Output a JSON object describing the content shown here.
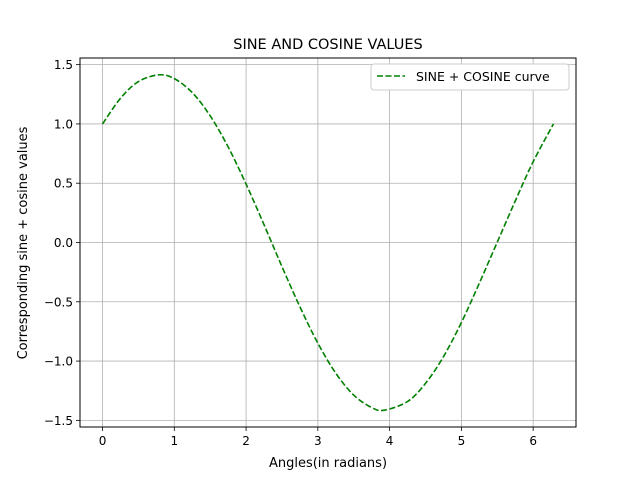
{
  "chart_data": {
    "type": "line",
    "title": "SINE AND COSINE VALUES",
    "xlabel": "Angles(in radians)",
    "ylabel": "Corresponding sine + cosine values",
    "xlim": [
      -0.314,
      6.597
    ],
    "ylim": [
      -1.556,
      1.556
    ],
    "x_ticks": [
      0,
      1,
      2,
      3,
      4,
      5,
      6
    ],
    "x_tick_labels": [
      "0",
      "1",
      "2",
      "3",
      "4",
      "5",
      "6"
    ],
    "y_ticks": [
      -1.5,
      -1.0,
      -0.5,
      0.0,
      0.5,
      1.0,
      1.5
    ],
    "y_tick_labels": [
      "−1.5",
      "−1.0",
      "−0.5",
      "0.0",
      "0.5",
      "1.0",
      "1.5"
    ],
    "grid": true,
    "legend_position": "upper right",
    "series": [
      {
        "name": "SINE + COSINE curve",
        "color": "#008000",
        "line_style": "dashed",
        "x": [
          0.0,
          0.25,
          0.5,
          0.785,
          1.0,
          1.25,
          1.5,
          1.75,
          2.0,
          2.25,
          2.5,
          2.75,
          3.0,
          3.25,
          3.5,
          3.75,
          3.927,
          4.25,
          4.5,
          4.75,
          5.0,
          5.25,
          5.5,
          5.75,
          6.0,
          6.283
        ],
        "y": [
          1.0,
          1.216,
          1.357,
          1.414,
          1.382,
          1.264,
          1.068,
          0.806,
          0.493,
          0.15,
          -0.203,
          -0.542,
          -0.849,
          -1.102,
          -1.287,
          -1.392,
          -1.414,
          -1.341,
          -1.188,
          -0.963,
          -0.675,
          -0.343,
          0.003,
          0.349,
          0.681,
          1.0
        ]
      }
    ]
  }
}
